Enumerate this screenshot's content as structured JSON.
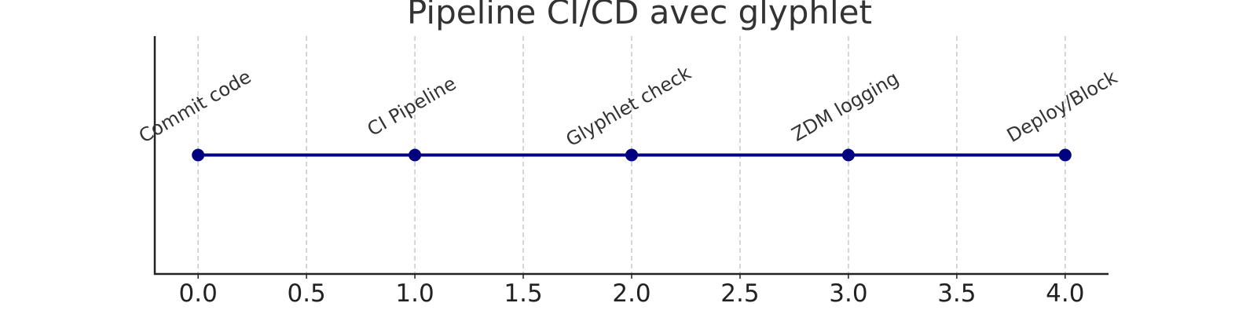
{
  "chart_data": {
    "type": "line",
    "title": "Pipeline CI/CD avec glyphlet",
    "xlabel": "",
    "ylabel": "",
    "x": [
      0,
      1,
      2,
      3,
      4
    ],
    "y": [
      1,
      1,
      1,
      1,
      1
    ],
    "point_labels": [
      "Commit code",
      "CI Pipeline",
      "Glyphlet check",
      "ZDM logging",
      "Deploy/Block"
    ],
    "xlim": [
      -0.2,
      4.2
    ],
    "ylim": [
      0.5,
      1.5
    ],
    "xticks": [
      0.0,
      0.5,
      1.0,
      1.5,
      2.0,
      2.5,
      3.0,
      3.5,
      4.0
    ],
    "xtick_labels": [
      "0.0",
      "0.5",
      "1.0",
      "1.5",
      "2.0",
      "2.5",
      "3.0",
      "3.5",
      "4.0"
    ],
    "yticks_visible": false,
    "grid": "vertical dashed",
    "label_rotation_deg": 30,
    "colors": {
      "series": "#000080",
      "grid": "#c8c8c8",
      "axis": "#222222",
      "title": "#333333",
      "text": "#333333"
    }
  }
}
